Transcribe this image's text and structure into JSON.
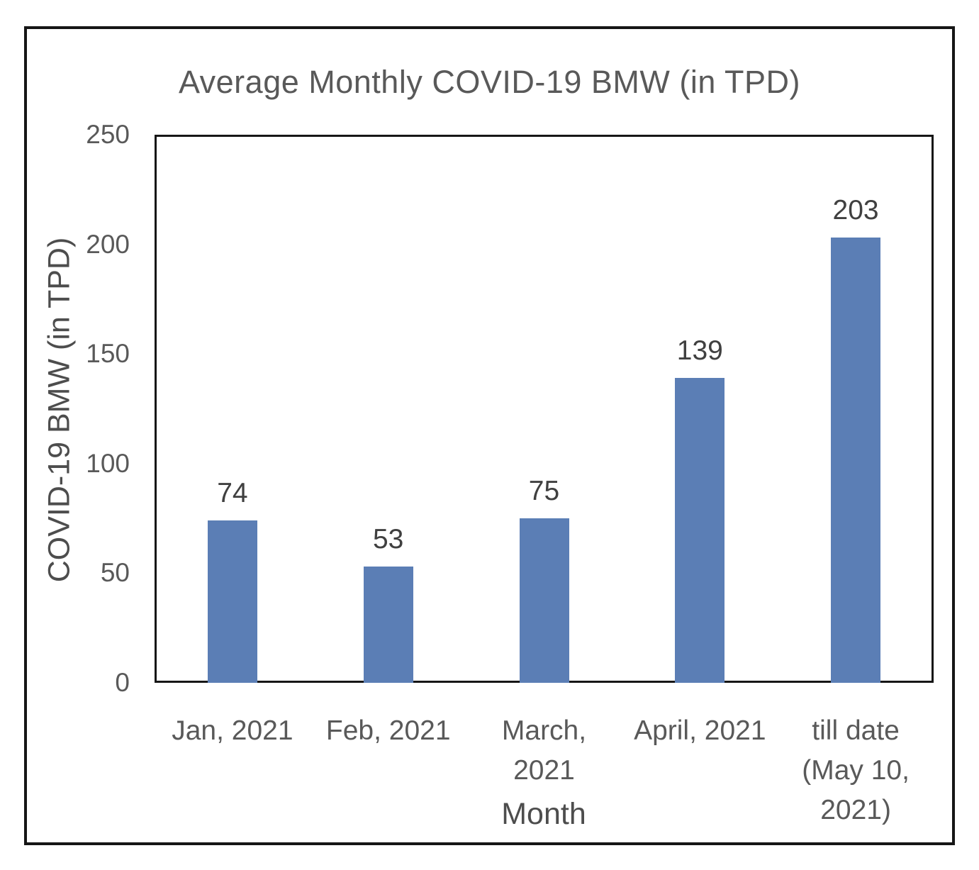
{
  "chart_data": {
    "type": "bar",
    "title": "Average Monthly COVID-19 BMW (in TPD)",
    "categories": [
      "Jan, 2021",
      "Feb, 2021",
      "March, 2021",
      "April, 2021",
      "till date (May 10, 2021)"
    ],
    "category_display": [
      "Jan, 2021",
      "Feb, 2021",
      "March,\n2021",
      "April, 2021",
      "till date\n(May 10,\n2021)"
    ],
    "values": [
      74,
      53,
      75,
      139,
      203
    ],
    "data_labels": [
      "74",
      "53",
      "75",
      "139",
      "203"
    ],
    "xlabel": "Month",
    "ylabel": "COVID-19 BMW (in TPD)",
    "ylim": [
      0,
      250
    ],
    "yticks": [
      0,
      50,
      100,
      150,
      200,
      250
    ],
    "grid": false,
    "legend": "none"
  },
  "colors": {
    "bar": "#5B7EB5",
    "text": "#595959",
    "data_label": "#404040",
    "axis_title": "#4D4D4D",
    "border": "#161616",
    "background": "#FFFFFF"
  }
}
